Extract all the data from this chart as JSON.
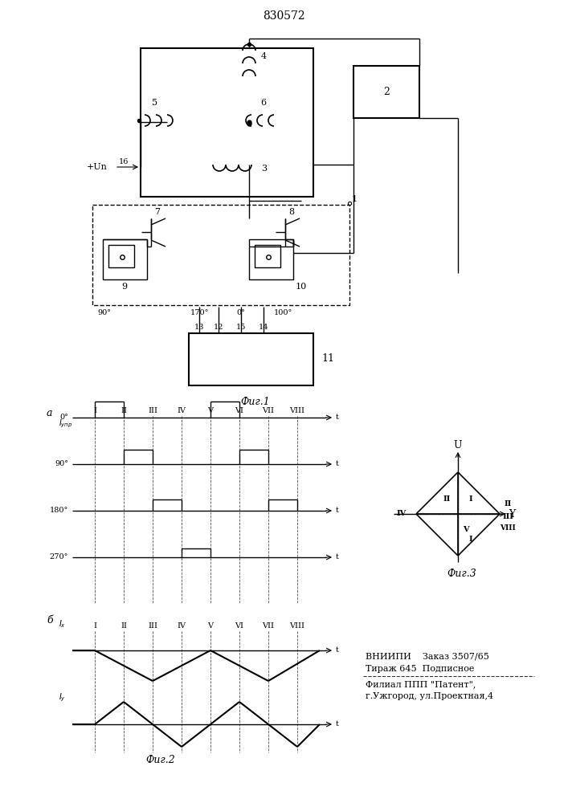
{
  "title": "830572",
  "background": "#ffffff",
  "line_color": "#000000",
  "fig1_caption": "Фиг.1",
  "fig2_caption": "Фиг.2",
  "fig3_caption": "Фиг.3",
  "bottom_text1": "ВНИИПИ    Заказ 3507/65",
  "bottom_text2": "Тираж 645  Подписное",
  "bottom_text3": "Филиал ППП \"Патент\",",
  "bottom_text4": "г.Ужгород, ул.Проектная,4",
  "roman_labels": [
    "I",
    "II",
    "III",
    "IV",
    "V",
    "VI",
    "VII",
    "VIII"
  ],
  "angle_labels_fig2a": [
    "0°",
    "90°",
    "180°",
    "270°"
  ]
}
